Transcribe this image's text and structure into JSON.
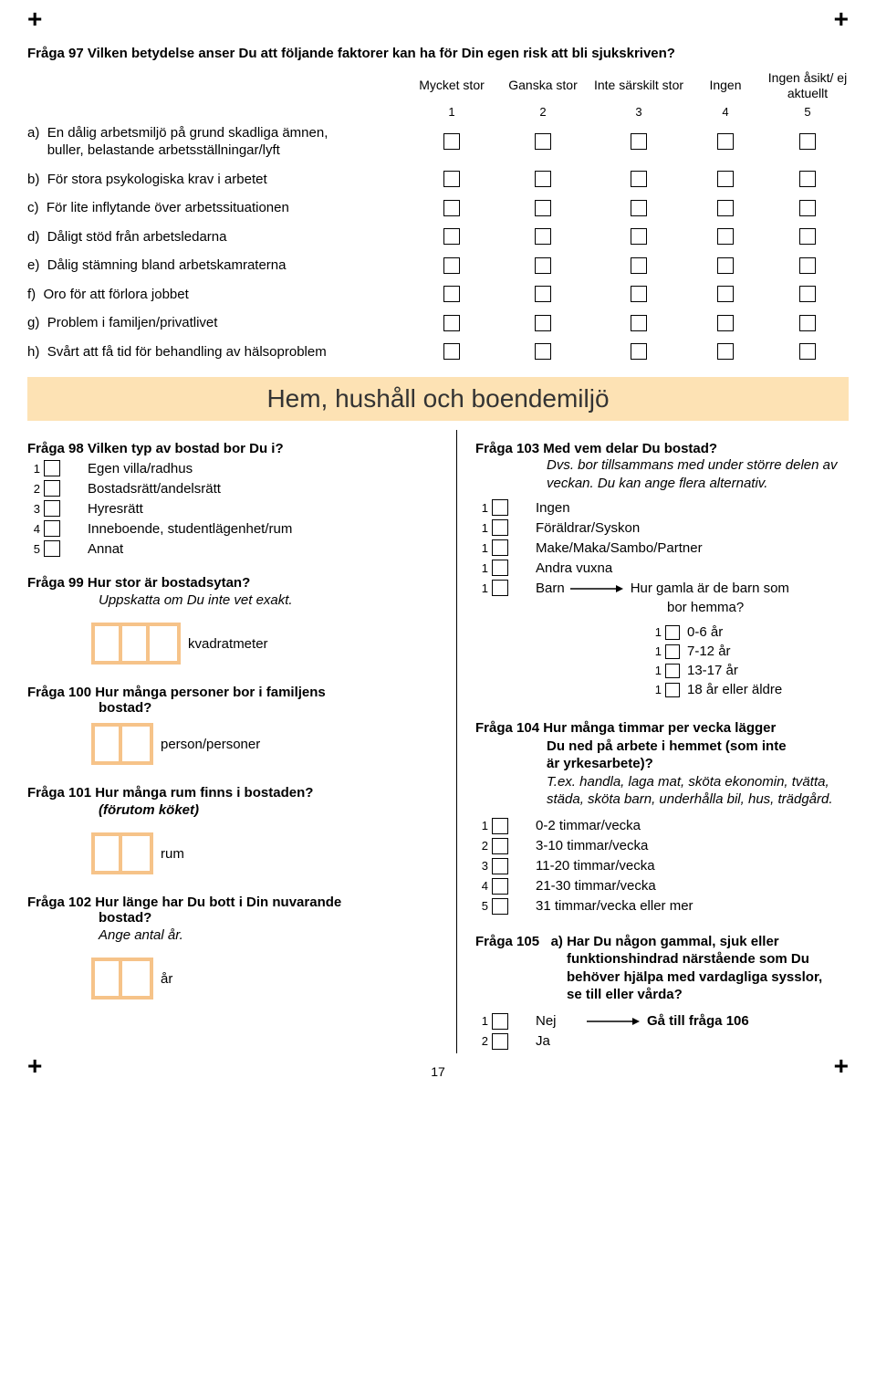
{
  "page_number": "17",
  "crosses": "+",
  "q97": {
    "title": "Fråga 97 Vilken betydelse anser Du att följande faktorer kan ha för Din egen risk att bli sjukskriven?",
    "headers": [
      "Mycket stor",
      "Ganska stor",
      "Inte särskilt stor",
      "Ingen",
      "Ingen åsikt/ ej aktuellt"
    ],
    "nums": [
      "1",
      "2",
      "3",
      "4",
      "5"
    ],
    "rows": [
      {
        "pre": "a)",
        "label": "En dålig arbetsmiljö på grund skadliga ämnen,",
        "label2": "buller, belastande arbetsställningar/lyft"
      },
      {
        "pre": "b)",
        "label": "För stora psykologiska krav i arbetet"
      },
      {
        "pre": "c)",
        "label": "För lite inflytande över arbetssituationen"
      },
      {
        "pre": "d)",
        "label": "Dåligt stöd från arbetsledarna"
      },
      {
        "pre": "e)",
        "label": "Dålig stämning bland arbetskamraterna"
      },
      {
        "pre": "f)",
        "label": "Oro för att förlora jobbet"
      },
      {
        "pre": "g)",
        "label": "Problem i familjen/privatlivet"
      },
      {
        "pre": "h)",
        "label": "Svårt att få tid för behandling av hälsoproblem"
      }
    ]
  },
  "section_title": "Hem, hushåll och boendemiljö",
  "q98": {
    "title": "Fråga 98  Vilken typ av bostad bor Du i?",
    "opts": [
      {
        "n": "1",
        "l": "Egen villa/radhus"
      },
      {
        "n": "2",
        "l": "Bostadsrätt/andelsrätt"
      },
      {
        "n": "3",
        "l": "Hyresrätt"
      },
      {
        "n": "4",
        "l": "Inneboende, studentlägenhet/rum"
      },
      {
        "n": "5",
        "l": "Annat"
      }
    ]
  },
  "q99": {
    "title": "Fråga 99 Hur stor är bostadsytan?",
    "sub": "Uppskatta om Du inte vet exakt.",
    "unit": "kvadratmeter",
    "digits": 3
  },
  "q100": {
    "title": "Fråga 100 Hur många personer bor i familjens",
    "title2": "bostad?",
    "unit": "person/personer",
    "digits": 2
  },
  "q101": {
    "title": "Fråga 101 Hur många rum finns i bostaden?",
    "sub": "(förutom köket)",
    "unit": "rum",
    "digits": 2
  },
  "q102": {
    "title": "Fråga 102 Hur länge har Du bott i Din nuvarande",
    "title2": "bostad?",
    "sub": "Ange antal år.",
    "unit": "år",
    "digits": 2
  },
  "q103": {
    "title": "Fråga 103 Med vem delar Du bostad?",
    "sub": "Dvs. bor tillsammans med under större delen av veckan. Du kan ange flera alternativ.",
    "opts": [
      {
        "n": "1",
        "l": "Ingen"
      },
      {
        "n": "1",
        "l": "Föräldrar/Syskon"
      },
      {
        "n": "1",
        "l": "Make/Maka/Sambo/Partner"
      },
      {
        "n": "1",
        "l": "Andra vuxna"
      },
      {
        "n": "1",
        "l": "Barn"
      }
    ],
    "barn_arrow_text": "Hur gamla är de barn som bor hemma?",
    "ages": [
      {
        "n": "1",
        "l": "0-6 år"
      },
      {
        "n": "1",
        "l": "7-12 år"
      },
      {
        "n": "1",
        "l": "13-17 år"
      },
      {
        "n": "1",
        "l": "18 år eller äldre"
      }
    ]
  },
  "q104": {
    "title": "Fråga 104 Hur många timmar per vecka lägger Du ned på arbete i hemmet (som inte är yrkesarbete)?",
    "ex": "T.ex. handla, laga mat, sköta ekonomin, tvätta, städa, sköta barn, underhålla bil, hus, trädgård.",
    "opts": [
      {
        "n": "1",
        "l": "0-2 timmar/vecka"
      },
      {
        "n": "2",
        "l": "3-10 timmar/vecka"
      },
      {
        "n": "3",
        "l": "11-20 timmar/vecka"
      },
      {
        "n": "4",
        "l": "21-30 timmar/vecka"
      },
      {
        "n": "5",
        "l": "31 timmar/vecka eller mer"
      }
    ]
  },
  "q105": {
    "title_pre": "Fråga 105",
    "title": "a) Har Du någon gammal, sjuk eller funktionshindrad närstående som Du behöver hjälpa med vardagliga sysslor, se till eller vårda?",
    "opts": [
      {
        "n": "1",
        "l": "Nej",
        "arrow": "Gå till fråga 106"
      },
      {
        "n": "2",
        "l": "Ja"
      }
    ]
  },
  "colors": {
    "banner_bg": "#fde2b4",
    "digit_border": "#f6c389"
  }
}
